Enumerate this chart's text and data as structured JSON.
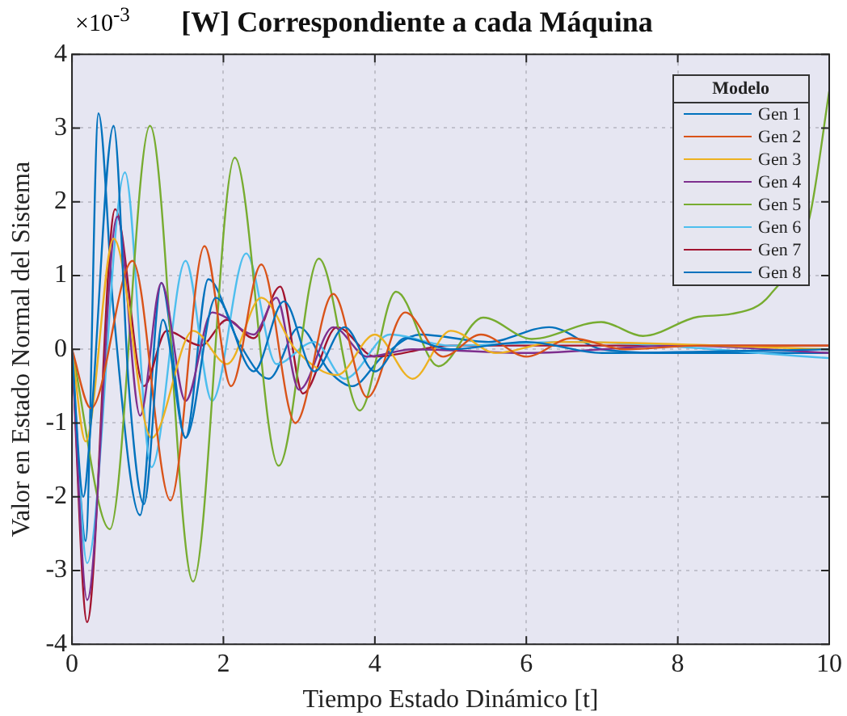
{
  "chart_data": {
    "type": "line",
    "title": "[W] Correspondiente a cada Máquina",
    "xlabel": "Tiempo Estado Dinámico [t]",
    "ylabel": "Valor en Estado Normal del Sistema",
    "legend_title": "Modelo",
    "annotations": [
      "×10$^{-3}$"
    ],
    "xlim": [
      0,
      10
    ],
    "xticks": [
      0,
      2,
      4,
      6,
      8,
      10
    ],
    "ylim": [
      -4,
      4
    ],
    "yticks": [
      -4,
      -3,
      -2,
      -1,
      0,
      1,
      2,
      3,
      4
    ],
    "grid": true,
    "legend": "top right",
    "marker": "none",
    "line_style": "solid",
    "series": [
      {
        "name": "Gen 1",
        "color": "#0072bd",
        "x": [
          0,
          0.15,
          0.25,
          0.55,
          0.75,
          0.95,
          1.2,
          1.5,
          1.9,
          2.4,
          2.8,
          3.2,
          3.6,
          4.0,
          4.4,
          5,
          6,
          7,
          10
        ],
        "values": [
          0,
          -2.0,
          -1.0,
          3.03,
          -0.5,
          -2.1,
          0.4,
          -1.2,
          0.7,
          -0.3,
          0.65,
          -0.3,
          0.3,
          -0.3,
          0.15,
          0,
          0.1,
          -0.05,
          0
        ]
      },
      {
        "name": "Gen 2",
        "color": "#d95319",
        "x": [
          0,
          0.25,
          0.8,
          1.3,
          1.75,
          2.1,
          2.5,
          2.95,
          3.45,
          3.9,
          4.4,
          4.9,
          5.4,
          6,
          6.6,
          7.3,
          8.3,
          10
        ],
        "values": [
          0,
          -0.8,
          1.2,
          -2.05,
          1.4,
          -0.5,
          1.15,
          -1.0,
          0.75,
          -0.65,
          0.5,
          -0.1,
          0.2,
          -0.1,
          0.15,
          0,
          0.05,
          0.05
        ]
      },
      {
        "name": "Gen 3",
        "color": "#edb120",
        "x": [
          0,
          0.18,
          0.55,
          1.05,
          1.6,
          2.05,
          2.5,
          2.95,
          3.5,
          4.0,
          4.5,
          5.0,
          5.6,
          6.4,
          10
        ],
        "values": [
          0,
          -1.25,
          1.5,
          -1.2,
          0.25,
          -0.2,
          0.7,
          0,
          -0.35,
          0.2,
          -0.4,
          0.25,
          -0.05,
          0.1,
          0
        ]
      },
      {
        "name": "Gen 4",
        "color": "#7e2f8e",
        "x": [
          0,
          0.2,
          0.6,
          0.9,
          1.18,
          1.5,
          1.85,
          2.0,
          2.4,
          2.7,
          3.0,
          3.45,
          3.9,
          4.5,
          6,
          8,
          10
        ],
        "values": [
          0,
          -3.4,
          1.8,
          -0.9,
          0.9,
          -0.7,
          0.5,
          0.45,
          0.2,
          0.7,
          -0.55,
          0.3,
          -0.1,
          0,
          -0.05,
          0.05,
          -0.05
        ]
      },
      {
        "name": "Gen 5",
        "color": "#77ac30",
        "x": [
          0,
          0.5,
          1.03,
          1.6,
          2.15,
          2.73,
          3.26,
          3.8,
          4.28,
          4.84,
          5.43,
          6.07,
          6.99,
          7.54,
          8.27,
          8.71,
          9.22,
          9.74,
          10
        ],
        "values": [
          0,
          -2.44,
          3.03,
          -3.15,
          2.6,
          -1.58,
          1.23,
          -0.83,
          0.78,
          -0.23,
          0.43,
          0.14,
          0.37,
          0.18,
          0.44,
          0.48,
          0.74,
          1.79,
          3.5
        ]
      },
      {
        "name": "Gen 6",
        "color": "#4dbeee",
        "x": [
          0,
          0.2,
          0.7,
          1.05,
          1.5,
          1.85,
          2.3,
          2.7,
          3.2,
          3.6,
          4.2,
          5,
          6.5,
          10
        ],
        "values": [
          0,
          -2.9,
          2.4,
          -1.6,
          1.2,
          -0.7,
          1.3,
          -0.2,
          0.1,
          -0.4,
          0.2,
          0.05,
          0.1,
          -0.12
        ]
      },
      {
        "name": "Gen 7",
        "color": "#a2142f",
        "x": [
          0,
          0.2,
          0.57,
          0.95,
          1.25,
          1.7,
          2.05,
          2.4,
          2.75,
          3.05,
          3.5,
          4.0,
          5,
          7,
          10
        ],
        "values": [
          0,
          -3.7,
          1.9,
          -0.5,
          0.25,
          0.05,
          0.4,
          0.15,
          0.85,
          -0.6,
          0.3,
          -0.1,
          0.05,
          0.05,
          0.05
        ]
      },
      {
        "name": "Gen 8",
        "color": "#0072bd",
        "x": [
          0,
          0.1,
          0.18,
          0.35,
          0.55,
          0.9,
          1.18,
          1.5,
          1.8,
          2.2,
          2.6,
          3.0,
          3.4,
          3.7,
          4.1,
          4.6,
          5.5,
          6.3,
          7,
          8,
          10
        ],
        "values": [
          0,
          -1.8,
          -2.6,
          3.2,
          0.5,
          -2.25,
          0.9,
          -1.2,
          0.95,
          0.1,
          -0.4,
          0.3,
          -0.3,
          -0.5,
          -0.1,
          0.2,
          0.1,
          0.3,
          0,
          -0.05,
          -0.05
        ]
      }
    ]
  }
}
